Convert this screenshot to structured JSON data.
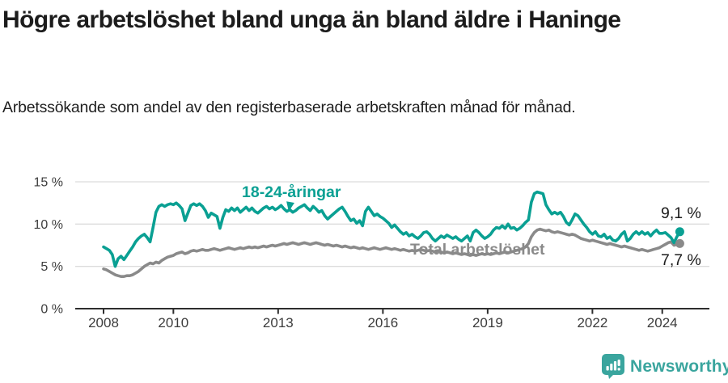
{
  "header": {
    "title": "Högre arbetslöshet bland unga än bland äldre i Haninge",
    "subtitle": "Arbetssökande som andel av den registerbaserade arbetskraften månad för månad."
  },
  "branding": {
    "logo_text": "Newsworthy",
    "logo_icon": "bar-chart-speech-bubble",
    "brand_color": "#3aa59e"
  },
  "chart_data": {
    "type": "line",
    "title": "Högre arbetslöshet bland unga än bland äldre i Haninge",
    "xlabel": "",
    "ylabel": "",
    "ylim": [
      0,
      15
    ],
    "grid": "horizontal",
    "grid_color": "#dcdcdc",
    "axis_color": "#2e2e2e",
    "axis_text_color": "#3c3c3c",
    "x_start_year": 2008,
    "x_start_month": 1,
    "x_end_year": 2024,
    "x_end_month": 7,
    "x_tick_years": [
      2008,
      2010,
      2013,
      2016,
      2019,
      2022,
      2024
    ],
    "y_ticks": [
      {
        "value": 0,
        "label": "0 %"
      },
      {
        "value": 5,
        "label": "5 %"
      },
      {
        "value": 10,
        "label": "10 %"
      },
      {
        "value": 15,
        "label": "15 %"
      }
    ],
    "series": [
      {
        "name": "18-24-åringar",
        "color": "#0aa093",
        "end_label": "9,1 %",
        "end_value": 9.1,
        "values": [
          7.3,
          7.1,
          6.9,
          6.4,
          5.0,
          5.9,
          6.2,
          5.8,
          6.3,
          6.8,
          7.3,
          7.9,
          8.3,
          8.6,
          8.8,
          8.4,
          7.9,
          9.6,
          11.4,
          12.1,
          12.3,
          12.1,
          12.3,
          12.4,
          12.3,
          12.5,
          12.2,
          11.8,
          10.4,
          11.3,
          12.2,
          12.4,
          12.2,
          12.4,
          12.1,
          11.6,
          10.8,
          11.3,
          11.1,
          10.9,
          9.5,
          10.8,
          11.7,
          11.5,
          11.9,
          11.6,
          11.9,
          11.4,
          11.7,
          12.0,
          11.6,
          11.9,
          11.5,
          11.3,
          11.6,
          11.9,
          12.1,
          11.8,
          12.0,
          11.7,
          11.9,
          12.2,
          11.8,
          11.5,
          11.7,
          11.4,
          11.6,
          11.9,
          12.1,
          12.3,
          11.9,
          11.6,
          12.1,
          11.8,
          11.4,
          11.6,
          11.0,
          10.6,
          10.9,
          11.2,
          11.5,
          11.8,
          12.0,
          11.5,
          10.9,
          10.4,
          10.6,
          10.1,
          10.4,
          9.8,
          11.5,
          12.0,
          11.5,
          11.0,
          11.2,
          10.9,
          10.7,
          10.4,
          10.1,
          9.6,
          9.9,
          9.5,
          9.1,
          8.8,
          9.0,
          8.6,
          8.8,
          8.5,
          8.3,
          8.6,
          9.0,
          9.1,
          8.8,
          8.3,
          8.0,
          8.3,
          8.6,
          8.4,
          8.7,
          8.5,
          8.3,
          8.5,
          8.2,
          8.0,
          8.3,
          8.6,
          8.0,
          9.0,
          9.3,
          9.0,
          8.6,
          8.3,
          8.5,
          8.8,
          9.3,
          9.6,
          9.5,
          9.8,
          9.5,
          10.0,
          9.5,
          9.6,
          9.3,
          9.5,
          9.8,
          10.2,
          10.5,
          12.6,
          13.6,
          13.8,
          13.7,
          13.6,
          12.3,
          11.7,
          11.2,
          11.4,
          11.2,
          11.4,
          10.9,
          10.2,
          9.9,
          10.5,
          11.2,
          11.0,
          10.5,
          10.0,
          9.6,
          9.1,
          8.8,
          9.1,
          8.6,
          8.5,
          8.8,
          8.3,
          8.5,
          8.1,
          8.0,
          8.3,
          8.8,
          9.1,
          8.0,
          8.3,
          8.8,
          9.1,
          8.8,
          9.1,
          8.8,
          9.0,
          8.6,
          9.0,
          9.3,
          8.9,
          8.9,
          9.0,
          8.7,
          8.4,
          7.8,
          8.5,
          9.1
        ]
      },
      {
        "name": "Total arbetslöshet",
        "color": "#8a8a8a",
        "end_label": "7,7 %",
        "end_value": 7.7,
        "values": [
          4.7,
          4.6,
          4.4,
          4.2,
          4.0,
          3.9,
          3.8,
          3.8,
          3.9,
          3.9,
          4.0,
          4.2,
          4.4,
          4.7,
          5.0,
          5.2,
          5.4,
          5.3,
          5.5,
          5.4,
          5.7,
          5.9,
          6.1,
          6.2,
          6.3,
          6.5,
          6.6,
          6.7,
          6.5,
          6.6,
          6.8,
          6.9,
          6.8,
          6.9,
          7.0,
          6.9,
          6.9,
          7.0,
          7.1,
          7.0,
          6.9,
          7.0,
          7.1,
          7.2,
          7.1,
          7.0,
          7.1,
          7.2,
          7.1,
          7.2,
          7.3,
          7.2,
          7.3,
          7.2,
          7.3,
          7.4,
          7.3,
          7.4,
          7.5,
          7.4,
          7.5,
          7.6,
          7.7,
          7.6,
          7.7,
          7.8,
          7.7,
          7.6,
          7.7,
          7.8,
          7.7,
          7.6,
          7.7,
          7.8,
          7.7,
          7.6,
          7.5,
          7.6,
          7.5,
          7.4,
          7.5,
          7.4,
          7.3,
          7.4,
          7.3,
          7.2,
          7.3,
          7.2,
          7.1,
          7.2,
          7.1,
          7.0,
          7.1,
          7.2,
          7.1,
          7.0,
          7.1,
          7.2,
          7.1,
          7.0,
          7.1,
          7.0,
          6.9,
          7.0,
          6.9,
          6.8,
          6.9,
          6.8,
          6.9,
          7.0,
          6.9,
          6.8,
          6.9,
          6.8,
          6.7,
          6.8,
          6.7,
          6.6,
          6.7,
          6.6,
          6.5,
          6.6,
          6.5,
          6.4,
          6.5,
          6.4,
          6.3,
          6.4,
          6.3,
          6.4,
          6.5,
          6.4,
          6.5,
          6.4,
          6.5,
          6.6,
          6.5,
          6.6,
          6.7,
          6.6,
          6.7,
          6.8,
          6.9,
          7.0,
          7.1,
          7.3,
          7.7,
          8.5,
          9.0,
          9.3,
          9.4,
          9.3,
          9.2,
          9.3,
          9.1,
          9.0,
          9.1,
          9.0,
          8.9,
          8.8,
          8.7,
          8.8,
          8.7,
          8.5,
          8.3,
          8.2,
          8.1,
          8.0,
          8.1,
          8.0,
          7.9,
          7.8,
          7.7,
          7.6,
          7.7,
          7.6,
          7.5,
          7.4,
          7.3,
          7.4,
          7.3,
          7.2,
          7.1,
          7.0,
          6.9,
          7.0,
          6.9,
          6.8,
          6.9,
          7.0,
          7.1,
          7.2,
          7.4,
          7.6,
          7.8,
          7.9,
          7.5,
          7.6,
          7.7
        ]
      }
    ]
  }
}
